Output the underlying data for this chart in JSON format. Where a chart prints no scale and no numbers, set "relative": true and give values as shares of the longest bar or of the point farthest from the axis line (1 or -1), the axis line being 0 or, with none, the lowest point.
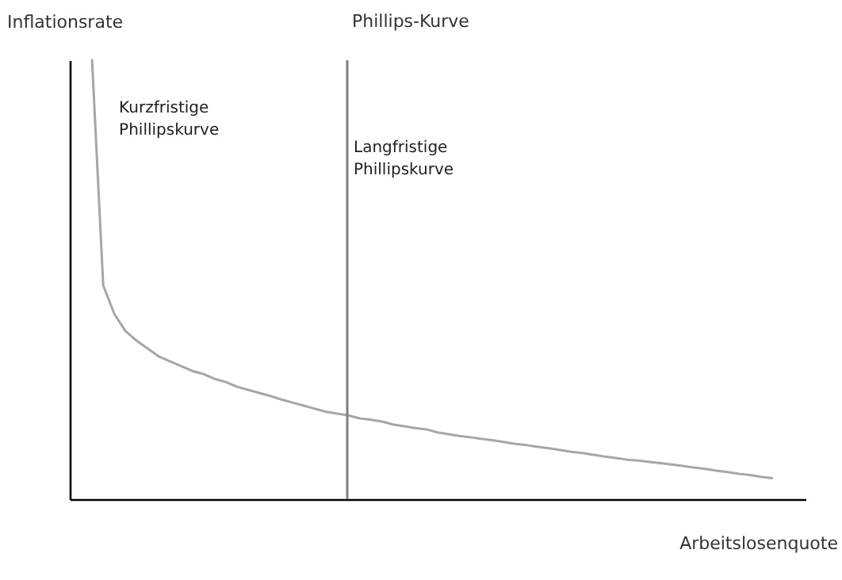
{
  "chart_data": {
    "type": "line",
    "title": "Phillips-Kurve",
    "xlabel": "Arbeitslosenquote",
    "ylabel": "Inflationsrate",
    "relative": true,
    "tick_labels": false,
    "marker": "none",
    "line_style": "solid",
    "categories": [
      null,
      null,
      null,
      null,
      null,
      null,
      null,
      null,
      null,
      null,
      null,
      null,
      null,
      null,
      null,
      null,
      null,
      null,
      null,
      null,
      null,
      null,
      null,
      null,
      null,
      null,
      null,
      null,
      null,
      null,
      null,
      null,
      null,
      null,
      null,
      null,
      null,
      null,
      null,
      null,
      null,
      null,
      null,
      null,
      null,
      null,
      null,
      null,
      null,
      null,
      null,
      null,
      null,
      null,
      null,
      null,
      null,
      null,
      null,
      null,
      null,
      null,
      null,
      null,
      null,
      null,
      null
    ],
    "series": [
      {
        "name": "Kurzfristige Phillipskurve",
        "color": "#a6a6a6",
        "values": [
          null,
          null,
          1.0,
          0.487,
          0.422,
          0.383,
          0.361,
          0.343,
          0.325,
          0.314,
          0.303,
          0.292,
          0.285,
          0.274,
          0.267,
          0.256,
          0.249,
          0.242,
          0.235,
          0.227,
          0.22,
          0.213,
          0.206,
          0.199,
          0.195,
          0.191,
          0.184,
          0.181,
          0.177,
          0.17,
          0.166,
          0.162,
          0.159,
          0.152,
          0.148,
          0.144,
          0.141,
          0.137,
          0.134,
          0.13,
          0.126,
          0.123,
          0.119,
          0.116,
          0.112,
          0.108,
          0.105,
          0.101,
          0.097,
          0.094,
          0.09,
          0.088,
          0.085,
          0.082,
          0.079,
          0.076,
          0.072,
          0.069,
          0.065,
          0.062,
          0.058,
          0.055,
          0.051,
          0.048,
          null,
          null,
          null
        ]
      }
    ],
    "annotations": [
      "Langfristige Phillipskurve"
    ]
  }
}
